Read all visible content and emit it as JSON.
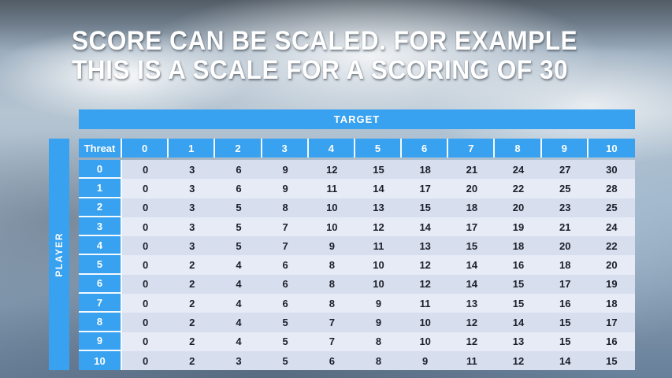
{
  "slide": {
    "title_line1": "SCORE CAN BE SCALED. FOR EXAMPLE",
    "title_line2": "THIS IS A SCALE FOR A SCORING OF 30"
  },
  "table": {
    "target_label": "TARGET",
    "player_label": "PLAYER",
    "corner_label": "Threat",
    "column_headers": [
      "0",
      "1",
      "2",
      "3",
      "4",
      "5",
      "6",
      "7",
      "8",
      "9",
      "10"
    ],
    "row_headers": [
      "0",
      "1",
      "2",
      "3",
      "4",
      "5",
      "6",
      "7",
      "8",
      "9",
      "10"
    ],
    "rows": [
      [
        0,
        3,
        6,
        9,
        12,
        15,
        18,
        21,
        24,
        27,
        30
      ],
      [
        0,
        3,
        6,
        9,
        11,
        14,
        17,
        20,
        22,
        25,
        28
      ],
      [
        0,
        3,
        5,
        8,
        10,
        13,
        15,
        18,
        20,
        23,
        25
      ],
      [
        0,
        3,
        5,
        7,
        10,
        12,
        14,
        17,
        19,
        21,
        24
      ],
      [
        0,
        3,
        5,
        7,
        9,
        11,
        13,
        15,
        18,
        20,
        22
      ],
      [
        0,
        2,
        4,
        6,
        8,
        10,
        12,
        14,
        16,
        18,
        20
      ],
      [
        0,
        2,
        4,
        6,
        8,
        10,
        12,
        14,
        15,
        17,
        19
      ],
      [
        0,
        2,
        4,
        6,
        8,
        9,
        11,
        13,
        15,
        16,
        18
      ],
      [
        0,
        2,
        4,
        5,
        7,
        9,
        10,
        12,
        14,
        15,
        17
      ],
      [
        0,
        2,
        4,
        5,
        7,
        8,
        10,
        12,
        13,
        15,
        16
      ],
      [
        0,
        2,
        3,
        5,
        6,
        8,
        9,
        11,
        12,
        14,
        15
      ]
    ]
  },
  "colors": {
    "header_blue": "#38a1f0",
    "row_even": "#d7deee",
    "row_odd": "#e7ebf6",
    "cell_text": "#1b1f2a"
  }
}
